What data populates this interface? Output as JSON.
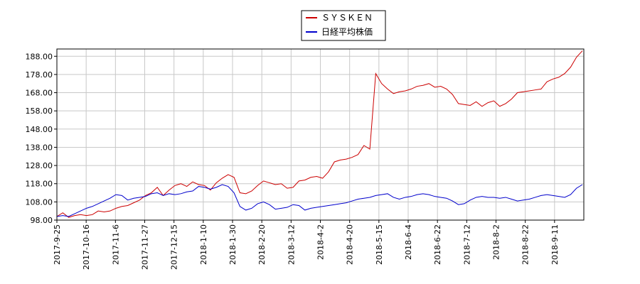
{
  "chart_data": {
    "type": "line",
    "title": "",
    "xlabel": "",
    "ylabel": "",
    "ylim": [
      98,
      192
    ],
    "y_ticks": [
      "98.00",
      "108.00",
      "118.00",
      "128.00",
      "138.00",
      "148.00",
      "158.00",
      "168.00",
      "178.00",
      "188.00"
    ],
    "x_tick_labels": [
      "2017-9-25",
      "2017-10-16",
      "2017-11-6",
      "2017-11-27",
      "2017-12-15",
      "2018-1-10",
      "2018-1-30",
      "2018-2-20",
      "2018-3-12",
      "2018-4-2",
      "2018-4-20",
      "2018-5-15",
      "2018-6-4",
      "2018-6-22",
      "2018-7-12",
      "2018-8-2",
      "2018-8-22",
      "2018-9-11"
    ],
    "grid": true,
    "legend_position": "top-center",
    "series": [
      {
        "name": "ＳＹＳＫＥＮ",
        "color": "#cc0000",
        "values": [
          100.0,
          102.0,
          99.5,
          100.5,
          101.0,
          100.5,
          101.0,
          103.0,
          102.5,
          103.0,
          104.5,
          105.5,
          106.0,
          107.5,
          109.0,
          111.5,
          113.0,
          116.0,
          111.5,
          114.5,
          117.0,
          118.0,
          116.5,
          119.0,
          117.5,
          117.0,
          114.5,
          118.5,
          121.0,
          123.0,
          121.5,
          113.0,
          112.5,
          114.0,
          117.0,
          119.5,
          118.5,
          117.5,
          118.0,
          115.5,
          116.0,
          119.5,
          120.0,
          121.5,
          122.0,
          121.0,
          124.5,
          130.0,
          131.0,
          131.5,
          132.5,
          134.0,
          139.0,
          137.0,
          178.5,
          173.0,
          170.0,
          167.5,
          168.5,
          169.0,
          170.0,
          171.5,
          172.0,
          173.0,
          171.0,
          171.5,
          170.0,
          167.0,
          162.0,
          161.5,
          161.0,
          163.0,
          160.5,
          162.5,
          163.5,
          160.5,
          162.0,
          164.5,
          168.0,
          168.5,
          169.0,
          169.5,
          170.0,
          174.0,
          175.5,
          176.5,
          178.5,
          182.0,
          187.5,
          191.0
        ]
      },
      {
        "name": "日経平均株価",
        "color": "#0000cc",
        "values": [
          100.0,
          100.5,
          100.0,
          101.5,
          103.0,
          104.5,
          105.5,
          107.0,
          108.5,
          110.0,
          112.0,
          111.5,
          109.0,
          110.0,
          110.5,
          111.0,
          112.5,
          113.0,
          111.5,
          112.5,
          112.0,
          112.5,
          113.5,
          114.0,
          116.5,
          116.0,
          115.0,
          116.0,
          117.5,
          116.5,
          113.0,
          105.5,
          103.5,
          104.5,
          107.0,
          108.0,
          106.5,
          104.0,
          104.5,
          105.0,
          106.5,
          106.0,
          103.5,
          104.5,
          105.0,
          105.5,
          106.0,
          106.5,
          107.0,
          107.5,
          108.5,
          109.5,
          110.0,
          110.5,
          111.5,
          112.0,
          112.5,
          110.5,
          109.5,
          110.5,
          111.0,
          112.0,
          112.5,
          112.0,
          111.0,
          110.5,
          110.0,
          108.5,
          106.5,
          107.0,
          109.0,
          110.5,
          111.0,
          110.5,
          110.5,
          110.0,
          110.5,
          109.5,
          108.5,
          109.0,
          109.5,
          110.5,
          111.5,
          112.0,
          111.5,
          111.0,
          110.5,
          112.0,
          115.5,
          117.5
        ]
      }
    ]
  }
}
